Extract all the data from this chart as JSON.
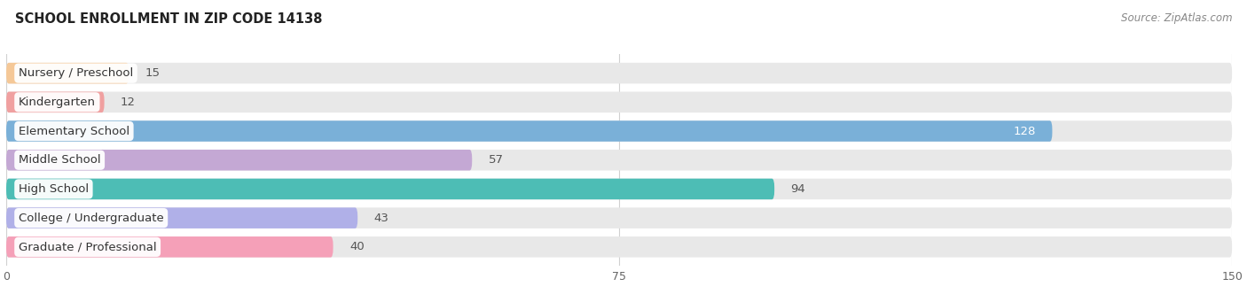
{
  "title": "SCHOOL ENROLLMENT IN ZIP CODE 14138",
  "source": "Source: ZipAtlas.com",
  "categories": [
    "Nursery / Preschool",
    "Kindergarten",
    "Elementary School",
    "Middle School",
    "High School",
    "College / Undergraduate",
    "Graduate / Professional"
  ],
  "values": [
    15,
    12,
    128,
    57,
    94,
    43,
    40
  ],
  "bar_colors": [
    "#f5c897",
    "#f0a0a0",
    "#7ab0d8",
    "#c4a8d4",
    "#4dbdb5",
    "#b0b0e8",
    "#f5a0b8"
  ],
  "bar_background": "#e8e8e8",
  "xlim": [
    0,
    150
  ],
  "xticks": [
    0,
    75,
    150
  ],
  "title_fontsize": 10.5,
  "source_fontsize": 8.5,
  "label_fontsize": 9.5,
  "value_fontsize": 9.5,
  "background_color": "#ffffff",
  "bar_height": 0.72,
  "bar_gap": 1.0,
  "title_color": "#222222",
  "label_text_color": "#333333",
  "value_color_inside": "#ffffff",
  "value_color_outside": "#555555",
  "value_threshold": 110,
  "grid_color": "#d0d0d0",
  "source_color": "#888888"
}
